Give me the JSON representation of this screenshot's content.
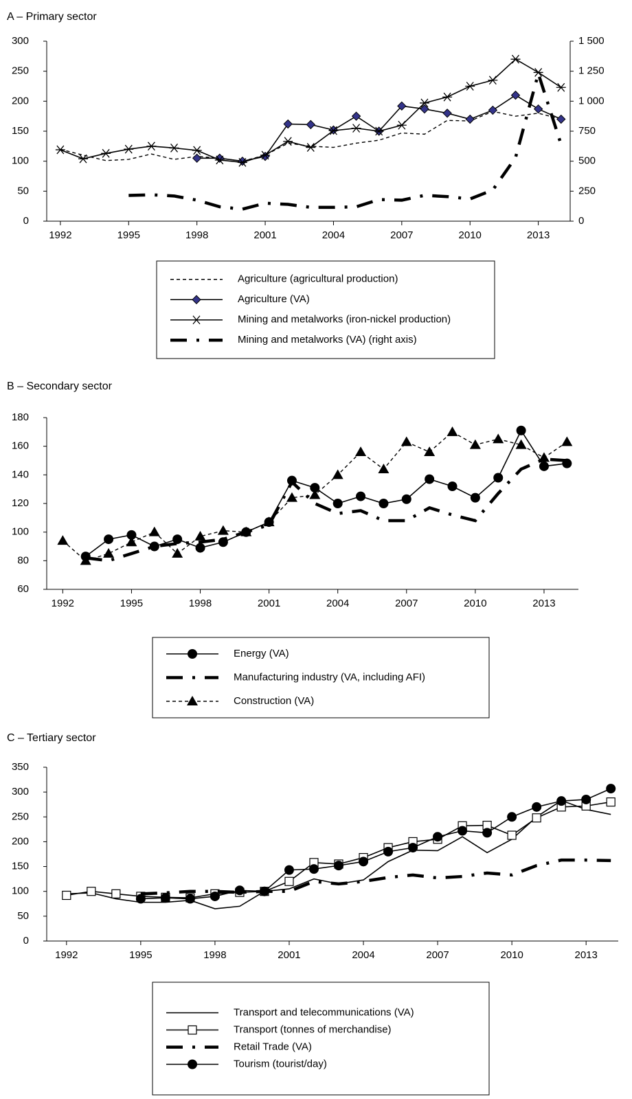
{
  "chart_data": [
    {
      "type": "line",
      "title": "A – Primary sector",
      "legend": "bottom",
      "x": [
        1992,
        1993,
        1994,
        1995,
        1996,
        1997,
        1998,
        1999,
        2000,
        2001,
        2002,
        2003,
        2004,
        2005,
        2006,
        2007,
        2008,
        2009,
        2010,
        2011,
        2012,
        2013,
        2014
      ],
      "xlim": [
        1991.4,
        2014.4
      ],
      "xticks": [
        1992,
        1995,
        1998,
        2001,
        2004,
        2007,
        2010,
        2013
      ],
      "ylim": [
        0,
        300
      ],
      "yticks": [
        0,
        50,
        100,
        150,
        200,
        250,
        300
      ],
      "y2lim": [
        0,
        1500
      ],
      "y2ticks": [
        0,
        250,
        500,
        750,
        {
          "value": 1000,
          "label": "1 000"
        },
        {
          "value": 1250,
          "label": "1 250"
        },
        {
          "value": 1500,
          "label": "1 500"
        }
      ],
      "series": [
        {
          "name": "Agriculture (agricultural production)",
          "color": "#000000",
          "style": "dashed",
          "marker": "none",
          "values": [
            120,
            110,
            101,
            103,
            112,
            103,
            108,
            105,
            100,
            110,
            130,
            125,
            123,
            130,
            135,
            147,
            145,
            168,
            167,
            183,
            175,
            180,
            170
          ]
        },
        {
          "name": "Agriculture (VA)",
          "color": "#000000",
          "marker_color": "#34348a",
          "style": "solid",
          "marker": "diamond",
          "values": [
            null,
            null,
            null,
            null,
            null,
            null,
            105,
            105,
            100,
            108,
            162,
            161,
            152,
            175,
            150,
            192,
            187,
            180,
            170,
            185,
            210,
            187,
            170
          ]
        },
        {
          "name": "Mining and metalworks (iron-nickel production)",
          "color": "#000000",
          "style": "solid",
          "marker": "star",
          "values": [
            119,
            104,
            113,
            120,
            125,
            122,
            118,
            102,
            98,
            110,
            133,
            123,
            151,
            155,
            150,
            160,
            197,
            207,
            225,
            235,
            270,
            248,
            223
          ]
        },
        {
          "name": "Mining and metalworks (VA) (right axis)",
          "color": "#000000",
          "style": "dashdot",
          "marker": "none",
          "axis": "y2",
          "values": [
            null,
            null,
            null,
            215,
            220,
            210,
            175,
            120,
            100,
            150,
            140,
            115,
            115,
            120,
            180,
            175,
            215,
            205,
            185,
            260,
            530,
            1230,
            640
          ]
        }
      ]
    },
    {
      "type": "line",
      "title": "B – Secondary sector",
      "legend": "bottom",
      "x": [
        1992,
        1993,
        1994,
        1995,
        1996,
        1997,
        1998,
        1999,
        2000,
        2001,
        2002,
        2003,
        2004,
        2005,
        2006,
        2007,
        2008,
        2009,
        2010,
        2011,
        2012,
        2013,
        2014
      ],
      "xlim": [
        1991.3,
        2014.5
      ],
      "xticks": [
        1992,
        1995,
        1998,
        2001,
        2004,
        2007,
        2010,
        2013
      ],
      "ylim": [
        60,
        180
      ],
      "yticks": [
        60,
        80,
        100,
        120,
        140,
        160,
        180
      ],
      "series": [
        {
          "name": "Energy (VA)",
          "color": "#000000",
          "style": "solid",
          "marker": "circle",
          "values": [
            null,
            83,
            95,
            98,
            90,
            95,
            89,
            93,
            100,
            107,
            136,
            131,
            120,
            125,
            120,
            123,
            137,
            132,
            124,
            138,
            171,
            146,
            148
          ]
        },
        {
          "name": "Manufacturing industry (VA, including AFI)",
          "color": "#000000",
          "style": "dashdot",
          "marker": "none",
          "values": [
            null,
            82,
            80,
            85,
            90,
            92,
            93,
            95,
            100,
            105,
            135,
            120,
            113,
            115,
            108,
            108,
            117,
            112,
            108,
            127,
            144,
            151,
            150
          ]
        },
        {
          "name": "Construction (VA)",
          "color": "#000000",
          "style": "dashed",
          "marker": "triangle",
          "values": [
            94,
            80,
            85,
            93,
            100,
            85,
            97,
            101,
            100,
            107,
            124,
            126,
            140,
            156,
            144,
            163,
            156,
            170,
            161,
            165,
            161,
            152,
            163
          ]
        }
      ]
    },
    {
      "type": "line",
      "title": "C – Tertiary sector",
      "legend": "bottom",
      "x": [
        1992,
        1993,
        1994,
        1995,
        1996,
        1997,
        1998,
        1999,
        2000,
        2001,
        2002,
        2003,
        2004,
        2005,
        2006,
        2007,
        2008,
        2009,
        2010,
        2011,
        2012,
        2013,
        2014
      ],
      "xlim": [
        1991.2,
        2014.3
      ],
      "xticks": [
        1992,
        1995,
        1998,
        2001,
        2004,
        2007,
        2010,
        2013
      ],
      "ylim": [
        0,
        350
      ],
      "yticks": [
        0,
        50,
        100,
        150,
        200,
        250,
        300,
        350
      ],
      "series": [
        {
          "name": "Transport and telecommunications (VA)",
          "color": "#000000",
          "style": "solid",
          "marker": "none",
          "values": [
            95,
            97,
            85,
            78,
            78,
            82,
            65,
            70,
            100,
            105,
            125,
            115,
            123,
            160,
            183,
            182,
            210,
            178,
            205,
            250,
            283,
            265,
            255
          ]
        },
        {
          "name": "Transport (tonnes of merchandise)",
          "color": "#000000",
          "style": "solid",
          "marker": "square",
          "values": [
            92,
            100,
            95,
            90,
            88,
            87,
            95,
            98,
            100,
            120,
            158,
            155,
            168,
            188,
            200,
            205,
            232,
            233,
            213,
            248,
            270,
            272,
            280
          ]
        },
        {
          "name": "Retail Trade (VA)",
          "color": "#000000",
          "style": "dashdot",
          "marker": "none",
          "values": [
            null,
            null,
            null,
            95,
            97,
            100,
            100,
            98,
            100,
            100,
            120,
            115,
            120,
            128,
            133,
            127,
            130,
            137,
            133,
            152,
            163,
            163,
            162
          ]
        },
        {
          "name": "Tourism (tourist/day)",
          "color": "#000000",
          "style": "solid",
          "marker": "circle",
          "values": [
            null,
            null,
            null,
            85,
            87,
            85,
            90,
            102,
            100,
            143,
            145,
            152,
            160,
            180,
            188,
            210,
            222,
            218,
            250,
            270,
            282,
            285,
            307
          ]
        }
      ]
    }
  ]
}
